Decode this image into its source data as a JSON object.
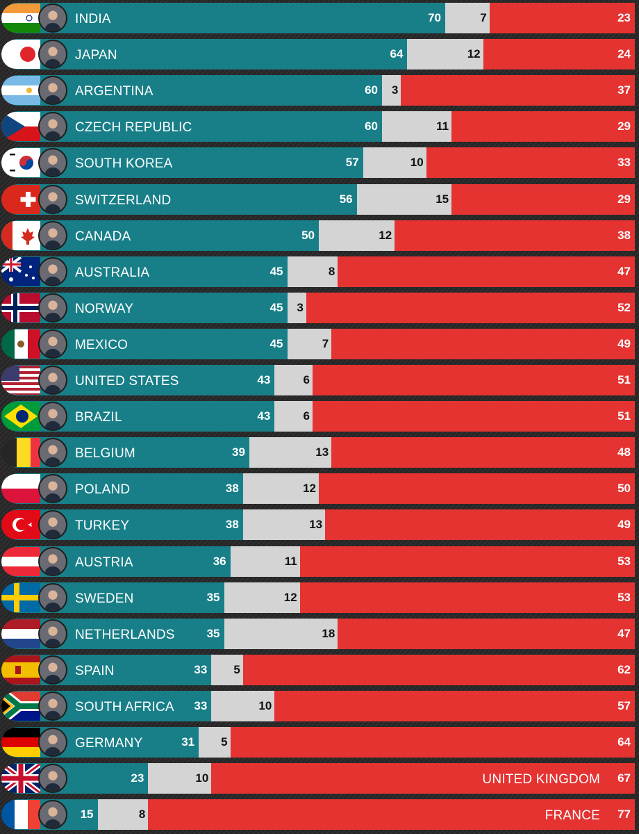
{
  "chart_data": {
    "type": "bar",
    "stacked": true,
    "orientation": "horizontal",
    "colors": {
      "approve": "#187f88",
      "neutral": "#d4d4d4",
      "disapprove": "#e43331"
    },
    "rows": [
      {
        "country": "INDIA",
        "values": [
          70,
          7,
          23
        ],
        "flag": "india",
        "label_in_red": false
      },
      {
        "country": "JAPAN",
        "values": [
          64,
          12,
          24
        ],
        "flag": "japan",
        "label_in_red": false
      },
      {
        "country": "ARGENTINA",
        "values": [
          60,
          3,
          37
        ],
        "flag": "argentina",
        "label_in_red": false
      },
      {
        "country": "CZECH REPUBLIC",
        "values": [
          60,
          11,
          29
        ],
        "flag": "czech",
        "label_in_red": false
      },
      {
        "country": "SOUTH KOREA",
        "values": [
          57,
          10,
          33
        ],
        "flag": "southkorea",
        "label_in_red": false
      },
      {
        "country": "SWITZERLAND",
        "values": [
          56,
          15,
          29
        ],
        "flag": "switzerland",
        "label_in_red": false
      },
      {
        "country": "CANADA",
        "values": [
          50,
          12,
          38
        ],
        "flag": "canada",
        "label_in_red": false
      },
      {
        "country": "AUSTRALIA",
        "values": [
          45,
          8,
          47
        ],
        "flag": "australia",
        "label_in_red": false
      },
      {
        "country": "NORWAY",
        "values": [
          45,
          3,
          52
        ],
        "flag": "norway",
        "label_in_red": false
      },
      {
        "country": "MEXICO",
        "values": [
          45,
          7,
          49
        ],
        "flag": "mexico",
        "label_in_red": false
      },
      {
        "country": "UNITED STATES",
        "values": [
          43,
          6,
          51
        ],
        "flag": "usa",
        "label_in_red": false
      },
      {
        "country": "BRAZIL",
        "values": [
          43,
          6,
          51
        ],
        "flag": "brazil",
        "label_in_red": false
      },
      {
        "country": "BELGIUM",
        "values": [
          39,
          13,
          48
        ],
        "flag": "belgium",
        "label_in_red": false
      },
      {
        "country": "POLAND",
        "values": [
          38,
          12,
          50
        ],
        "flag": "poland",
        "label_in_red": false
      },
      {
        "country": "TURKEY",
        "values": [
          38,
          13,
          49
        ],
        "flag": "turkey",
        "label_in_red": false
      },
      {
        "country": "AUSTRIA",
        "values": [
          36,
          11,
          53
        ],
        "flag": "austria",
        "label_in_red": false
      },
      {
        "country": "SWEDEN",
        "values": [
          35,
          12,
          53
        ],
        "flag": "sweden",
        "label_in_red": false
      },
      {
        "country": "NETHERLANDS",
        "values": [
          35,
          18,
          47
        ],
        "flag": "netherlands",
        "label_in_red": false
      },
      {
        "country": "SPAIN",
        "values": [
          33,
          5,
          62
        ],
        "flag": "spain",
        "label_in_red": false
      },
      {
        "country": "SOUTH AFRICA",
        "values": [
          33,
          10,
          57
        ],
        "flag": "southafrica",
        "label_in_red": false
      },
      {
        "country": "GERMANY",
        "values": [
          31,
          5,
          64
        ],
        "flag": "germany",
        "label_in_red": false
      },
      {
        "country": "UNITED KINGDOM",
        "values": [
          23,
          10,
          67
        ],
        "flag": "uk",
        "label_in_red": true
      },
      {
        "country": "FRANCE",
        "values": [
          15,
          8,
          77
        ],
        "flag": "france",
        "label_in_red": true
      }
    ]
  }
}
